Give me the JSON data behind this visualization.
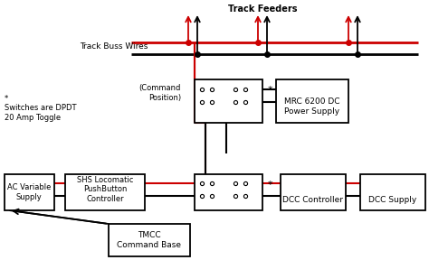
{
  "bg_color": "#ffffff",
  "fig_w": 4.74,
  "fig_h": 2.88,
  "dpi": 100,
  "track_buss_label": "Track Buss Wires",
  "track_feeders_label": "Track Feeders",
  "cmd_pos_label": "(Command\nPosition)",
  "mrc_label": "MRC 6200 DC\nPower Supply",
  "switches_label": "*\nSwitches are DPDT\n20 Amp Toggle",
  "ac_label": "AC Variable\nSupply",
  "shs_label": "SHS Locomatic\nPushButton\nController",
  "tmcc_label": "TMCC\nCommand Base",
  "dcc_ctrl_label": "DCC Controller",
  "dcc_sup_label": "DCC Supply",
  "red": "#cc0000",
  "black": "#000000",
  "white": "#ffffff"
}
